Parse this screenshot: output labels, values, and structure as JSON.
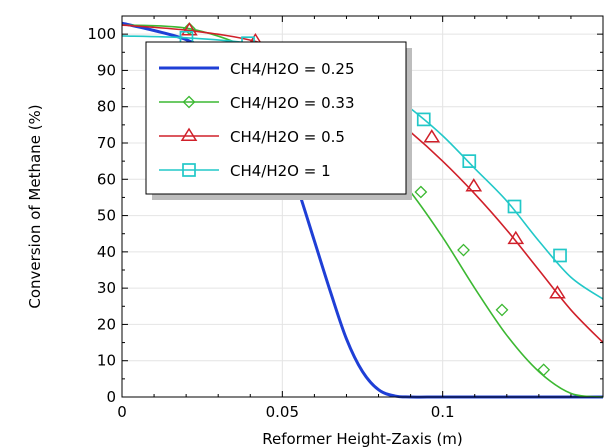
{
  "chart_data": {
    "type": "line",
    "title": "",
    "xlabel": "Reformer Height-Zaxis (m)",
    "ylabel": "Conversion of Methane (%)",
    "xlim": [
      0,
      0.15
    ],
    "ylim": [
      0,
      105
    ],
    "x_ticks": [
      0,
      0.05,
      0.1
    ],
    "x_tick_labels": [
      "0",
      "0.05",
      "0.1"
    ],
    "y_ticks": [
      0,
      10,
      20,
      30,
      40,
      50,
      60,
      70,
      80,
      90,
      100
    ],
    "y_tick_labels": [
      "0",
      "10",
      "20",
      "30",
      "40",
      "50",
      "60",
      "70",
      "80",
      "90",
      "100"
    ],
    "grid": true,
    "legend_position": "top-left",
    "series": [
      {
        "name": "CH4/H2O = 0.25",
        "color": "#1f3fd6",
        "marker": "none",
        "x": [
          0,
          0.01,
          0.02,
          0.03,
          0.04,
          0.045,
          0.05,
          0.055,
          0.06,
          0.065,
          0.07,
          0.075,
          0.08,
          0.085,
          0.09,
          0.1,
          0.12,
          0.15
        ],
        "y": [
          103,
          101,
          98.5,
          94,
          87,
          80,
          70,
          57,
          43,
          29,
          16,
          7,
          2,
          0.3,
          0,
          0,
          0,
          0
        ]
      },
      {
        "name": "CH4/H2O = 0.33",
        "color": "#3cb832",
        "marker": "diamond",
        "x": [
          0,
          0.021,
          0.04,
          0.06,
          0.07,
          0.08,
          0.09,
          0.1,
          0.11,
          0.12,
          0.13,
          0.14,
          0.15
        ],
        "y": [
          102.5,
          101.5,
          96,
          86,
          77,
          67,
          56.5,
          44,
          30,
          17,
          7,
          1,
          0
        ],
        "marker_x": [
          0.021,
          0.0932,
          0.1065,
          0.1185,
          0.1315
        ],
        "marker_y": [
          101.5,
          56.5,
          40.5,
          24,
          7.5
        ]
      },
      {
        "name": "CH4/H2O = 0.5",
        "color": "#d0202a",
        "marker": "triangle",
        "x": [
          0,
          0.021,
          0.0416,
          0.06,
          0.07,
          0.08,
          0.09,
          0.1,
          0.11,
          0.12,
          0.13,
          0.14,
          0.15
        ],
        "y": [
          102.5,
          101,
          98,
          92,
          87,
          80,
          73,
          65,
          56,
          46,
          35,
          24,
          15
        ],
        "marker_x": [
          0.021,
          0.0416,
          0.0966,
          0.1097,
          0.1228,
          0.1358
        ],
        "marker_y": [
          101,
          98,
          71.5,
          58,
          43.5,
          28.5
        ]
      },
      {
        "name": "CH4/H2O = 1",
        "color": "#22c8c8",
        "marker": "square",
        "x": [
          0,
          0.02,
          0.04,
          0.06,
          0.07,
          0.08,
          0.09,
          0.1,
          0.11,
          0.12,
          0.13,
          0.14,
          0.15
        ],
        "y": [
          99.5,
          99,
          97.5,
          94,
          90.5,
          86,
          79.5,
          72,
          63,
          54,
          43,
          33,
          27
        ],
        "marker_x": [
          0.0201,
          0.0393,
          0.0941,
          0.1083,
          0.1224,
          0.1366
        ],
        "marker_y": [
          99,
          97.5,
          76.5,
          65,
          52.5,
          39
        ]
      }
    ]
  }
}
